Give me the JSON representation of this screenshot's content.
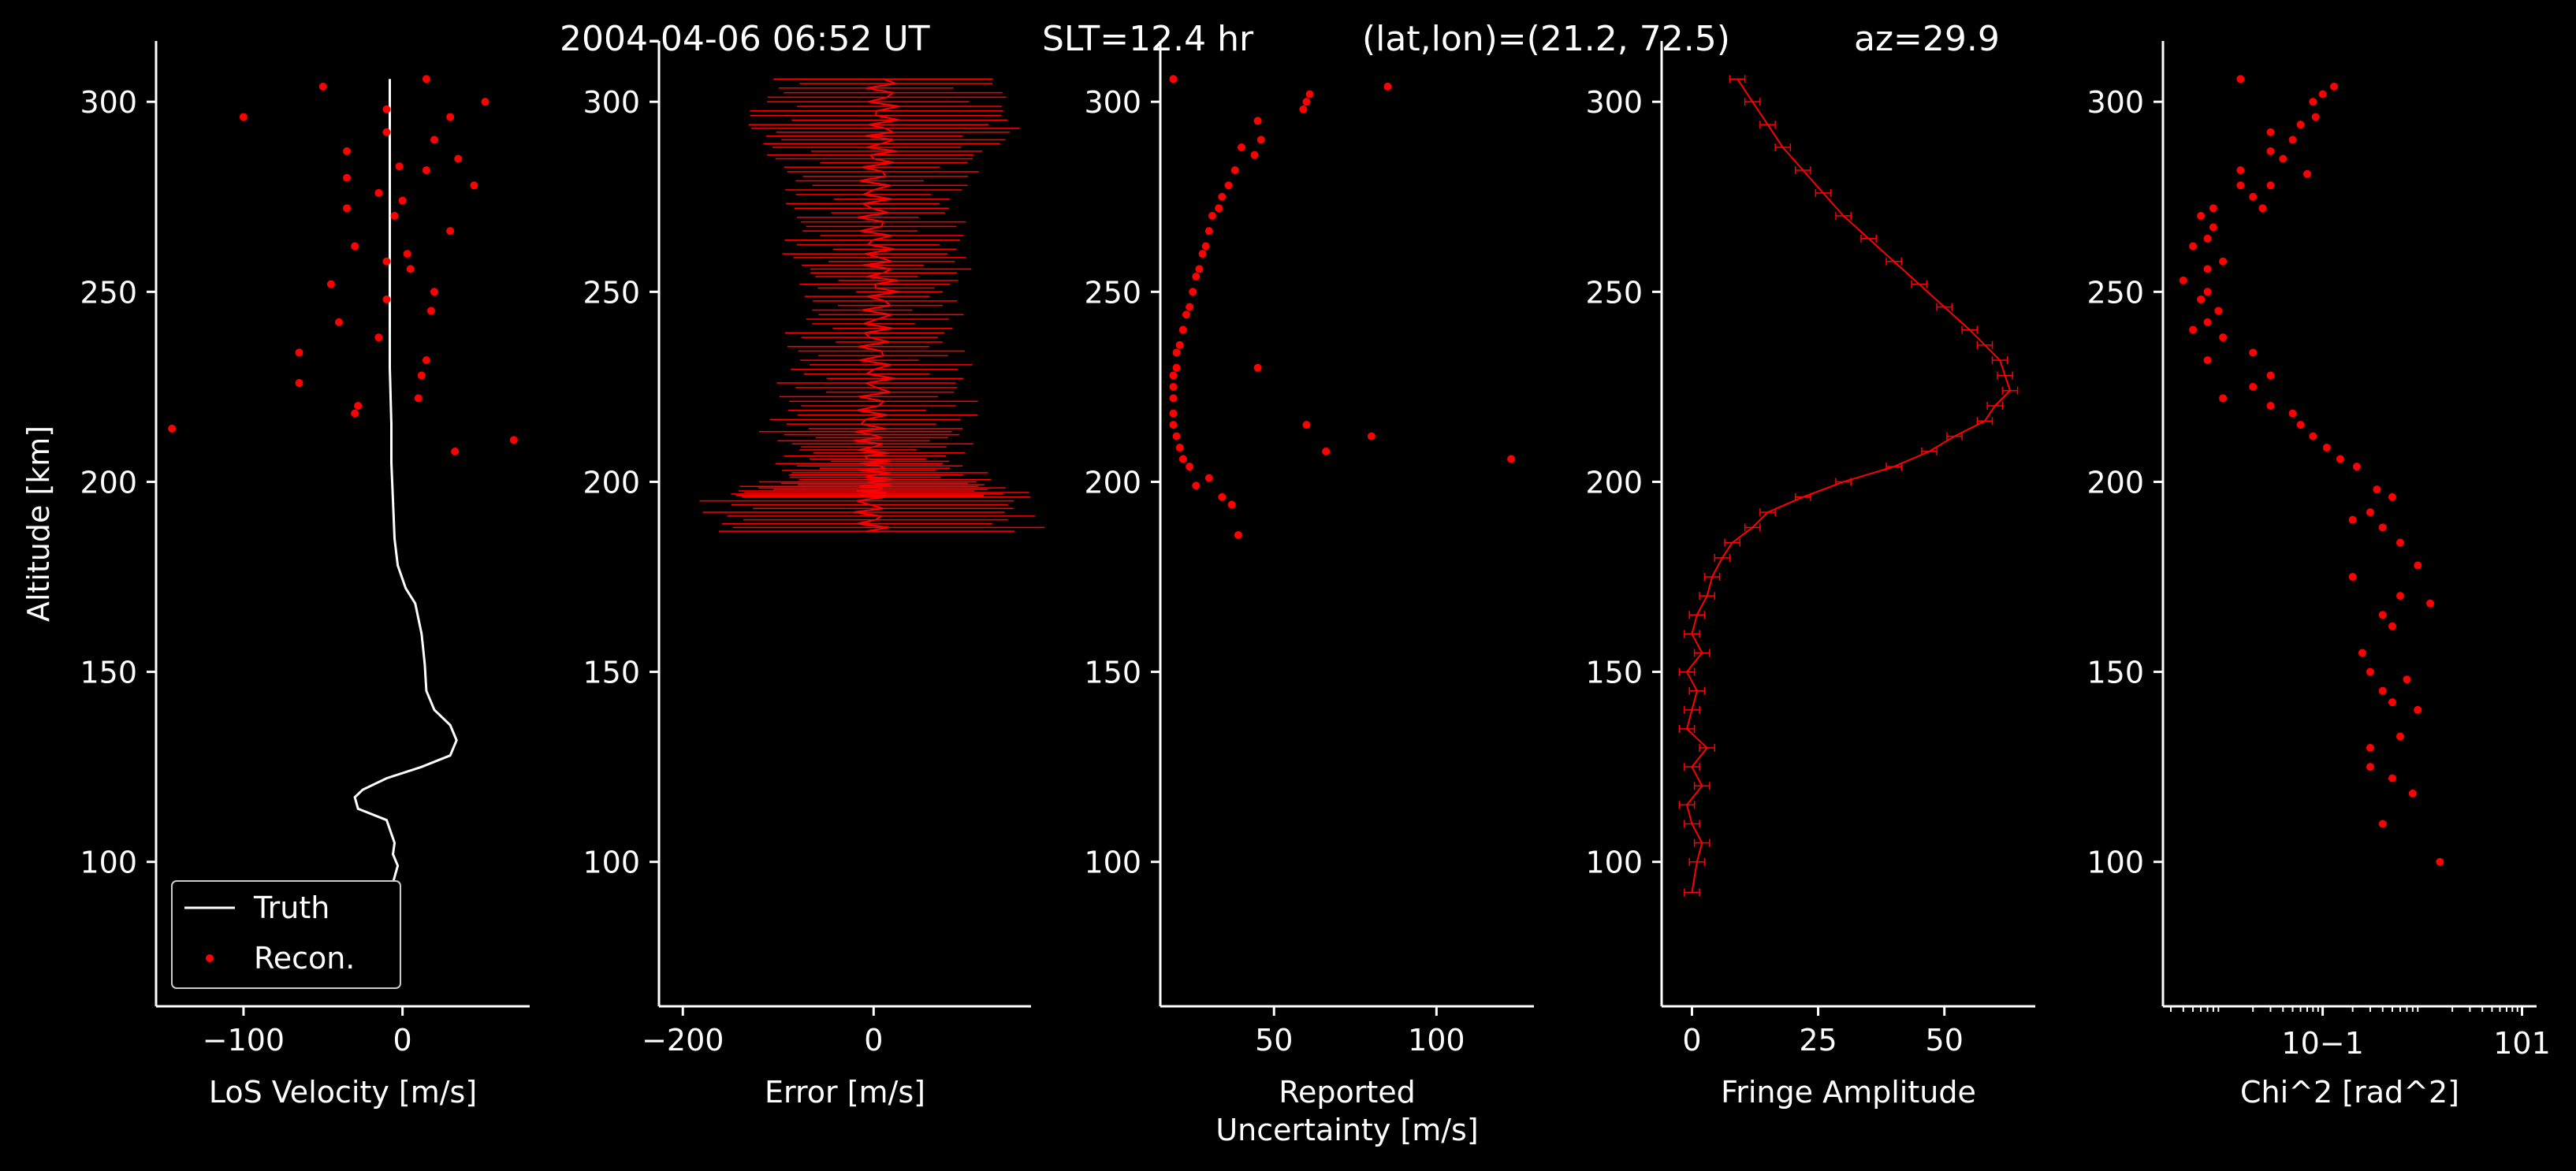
{
  "title": {
    "time": "2004-04-06 06:52 UT",
    "slt": "SLT=12.4 hr",
    "latlon": "(lat,lon)=(21.2, 72.5)",
    "az": "az=29.9"
  },
  "colors": {
    "background": "#000000",
    "foreground": "#ffffff",
    "recon": "#ff0000",
    "truth": "#ffffff"
  },
  "chart_data": [
    {
      "type": "line",
      "xlabel": "LoS Velocity [m/s]",
      "ylabel": "Altitude [km]",
      "xlim": [
        -155,
        80
      ],
      "ylim": [
        62,
        316
      ],
      "xticks": [
        -100,
        0
      ],
      "xtick_labels": [
        "−100",
        "0"
      ],
      "yticks": [
        100,
        150,
        200,
        250,
        300
      ],
      "ytick_labels": [
        "100",
        "150",
        "200",
        "250",
        "300"
      ],
      "legend": {
        "placement": "lower-left",
        "entries": [
          "Truth",
          "Recon."
        ]
      },
      "series": [
        {
          "name": "Truth",
          "kind": "line",
          "x": [
            -8,
            -8,
            -8,
            -8,
            -8,
            -7,
            -7,
            -6,
            -5,
            -3,
            2,
            8,
            12,
            14,
            15,
            20,
            30,
            34,
            30,
            12,
            -10,
            -25,
            -30,
            -28,
            -10,
            -5,
            -6,
            -3,
            -5,
            -7,
            -15
          ],
          "y": [
            306,
            290,
            270,
            250,
            230,
            215,
            205,
            195,
            185,
            178,
            172,
            168,
            160,
            152,
            145,
            140,
            136,
            132,
            128,
            125,
            122,
            119,
            117,
            114,
            111,
            105,
            102,
            99,
            96,
            93,
            91
          ]
        },
        {
          "name": "Recon.",
          "kind": "points",
          "x": [
            15,
            -50,
            52,
            -10,
            30,
            -100,
            -10,
            20,
            -35,
            35,
            -2,
            15,
            -35,
            45,
            -15,
            0,
            -35,
            -5,
            30,
            -30,
            3,
            -10,
            5,
            -45,
            20,
            -10,
            18,
            -40,
            -15,
            -65,
            15,
            12,
            -65,
            10,
            -28,
            -30,
            -145,
            70,
            33
          ],
          "y": [
            306,
            304,
            300,
            298,
            296,
            296,
            292,
            290,
            287,
            285,
            283,
            282,
            280,
            278,
            276,
            274,
            272,
            270,
            266,
            262,
            260,
            258,
            256,
            252,
            250,
            248,
            245,
            242,
            238,
            234,
            232,
            228,
            226,
            222,
            220,
            218,
            214,
            211,
            208
          ]
        }
      ]
    },
    {
      "type": "line",
      "xlabel": "Error [m/s]",
      "xlim": [
        -225,
        165
      ],
      "ylim": [
        62,
        316
      ],
      "xticks": [
        -200,
        0
      ],
      "xtick_labels": [
        "−200",
        "0"
      ],
      "yticks": [
        100,
        150,
        200,
        250,
        300
      ],
      "ytick_labels": [
        "100",
        "150",
        "200",
        "250",
        "300"
      ],
      "series": [
        {
          "name": "",
          "kind": "errorbar_band",
          "center": [
            10,
            10,
            5,
            0,
            5,
            10,
            0,
            5,
            -5,
            0,
            5,
            -5,
            0
          ],
          "halfwidth": [
            100,
            130,
            90,
            70,
            80,
            60,
            70,
            80,
            90,
            70,
            100,
            150,
            150
          ],
          "y": [
            306,
            294,
            284,
            272,
            260,
            250,
            238,
            226,
            214,
            206,
            200,
            196,
            186
          ]
        }
      ]
    },
    {
      "type": "scatter",
      "xlabel": "Reported\nUncertainty [m/s]",
      "xlim": [
        15,
        130
      ],
      "ylim": [
        62,
        316
      ],
      "xticks": [
        50,
        100
      ],
      "xtick_labels": [
        "50",
        "100"
      ],
      "yticks": [
        100,
        150,
        200,
        250,
        300
      ],
      "ytick_labels": [
        "100",
        "150",
        "200",
        "250",
        "300"
      ],
      "series": [
        {
          "name": "",
          "kind": "points",
          "x": [
            19,
            85,
            61,
            60,
            59,
            45,
            46,
            44,
            40,
            38,
            36,
            34,
            33,
            31,
            30,
            29,
            28,
            27,
            26,
            25,
            24,
            23,
            22,
            21,
            20,
            20,
            19,
            19,
            19,
            19,
            19,
            20,
            21,
            22,
            24,
            26,
            30,
            34,
            37,
            39,
            45,
            60,
            80,
            66,
            123
          ],
          "y": [
            306,
            304,
            302,
            300,
            298,
            295,
            290,
            286,
            288,
            282,
            278,
            275,
            272,
            270,
            266,
            262,
            260,
            256,
            254,
            250,
            246,
            244,
            240,
            236,
            234,
            230,
            228,
            225,
            222,
            218,
            215,
            212,
            209,
            206,
            204,
            199,
            201,
            196,
            194,
            186,
            230,
            215,
            212,
            208,
            206
          ]
        }
      ]
    },
    {
      "type": "line",
      "xlabel": "Fringe Amplitude",
      "xlim": [
        -6,
        68
      ],
      "ylim": [
        62,
        316
      ],
      "xticks": [
        0,
        25,
        50
      ],
      "xtick_labels": [
        "0",
        "25",
        "50"
      ],
      "yticks": [
        100,
        150,
        200,
        250,
        300
      ],
      "ytick_labels": [
        "100",
        "150",
        "200",
        "250",
        "300"
      ],
      "series": [
        {
          "name": "",
          "kind": "errorbar_line",
          "x": [
            9,
            12,
            15,
            18,
            22,
            26,
            30,
            35,
            40,
            45,
            50,
            55,
            58,
            61,
            62,
            63,
            60,
            58,
            52,
            47,
            40,
            30,
            22,
            15,
            12,
            8,
            6,
            4,
            3,
            1,
            0,
            2,
            -1,
            1,
            0,
            -1,
            3,
            0,
            2,
            -1,
            0,
            2,
            1,
            0
          ],
          "y": [
            306,
            300,
            294,
            288,
            282,
            276,
            270,
            264,
            258,
            252,
            246,
            240,
            236,
            232,
            228,
            224,
            220,
            216,
            212,
            208,
            204,
            200,
            196,
            192,
            188,
            184,
            180,
            175,
            170,
            165,
            160,
            155,
            150,
            145,
            140,
            135,
            130,
            125,
            120,
            115,
            110,
            105,
            100,
            92
          ]
        }
      ]
    },
    {
      "type": "scatter",
      "xlabel": "Chi^2 [rad^2]",
      "xscale": "log",
      "xlim": [
        0.0025,
        14
      ],
      "ylim": [
        62,
        316
      ],
      "xticks": [
        0.1,
        10
      ],
      "xtick_labels": [
        "10−1",
        "101"
      ],
      "yticks": [
        100,
        150,
        200,
        250,
        300
      ],
      "ytick_labels": [
        "100",
        "150",
        "200",
        "250",
        "300"
      ],
      "series": [
        {
          "name": "",
          "kind": "points",
          "x": [
            0.015,
            0.13,
            0.1,
            0.08,
            0.085,
            0.06,
            0.03,
            0.05,
            0.03,
            0.04,
            0.015,
            0.07,
            0.03,
            0.015,
            0.02,
            0.025,
            0.008,
            0.006,
            0.008,
            0.007,
            0.005,
            0.01,
            0.007,
            0.004,
            0.007,
            0.006,
            0.009,
            0.007,
            0.005,
            0.01,
            0.02,
            0.007,
            0.03,
            0.02,
            0.01,
            0.03,
            0.05,
            0.06,
            0.08,
            0.11,
            0.15,
            0.22,
            0.35,
            0.5,
            0.3,
            0.2,
            0.4,
            0.6,
            0.9,
            0.2,
            0.6,
            1.2,
            0.4,
            0.5,
            0.25,
            0.3,
            0.7,
            0.4,
            0.5,
            0.9,
            0.6,
            0.3,
            0.3,
            0.5,
            0.8,
            0.4,
            1.5
          ],
          "y": [
            306,
            304,
            302,
            300,
            296,
            294,
            292,
            290,
            287,
            285,
            282,
            281,
            278,
            278,
            275,
            272,
            272,
            270,
            267,
            264,
            262,
            258,
            256,
            253,
            250,
            248,
            245,
            242,
            240,
            238,
            234,
            232,
            228,
            225,
            222,
            220,
            218,
            215,
            212,
            209,
            206,
            204,
            198,
            196,
            192,
            190,
            188,
            184,
            178,
            175,
            170,
            168,
            165,
            162,
            155,
            150,
            148,
            145,
            142,
            140,
            133,
            130,
            125,
            122,
            118,
            110,
            100
          ]
        }
      ]
    }
  ]
}
